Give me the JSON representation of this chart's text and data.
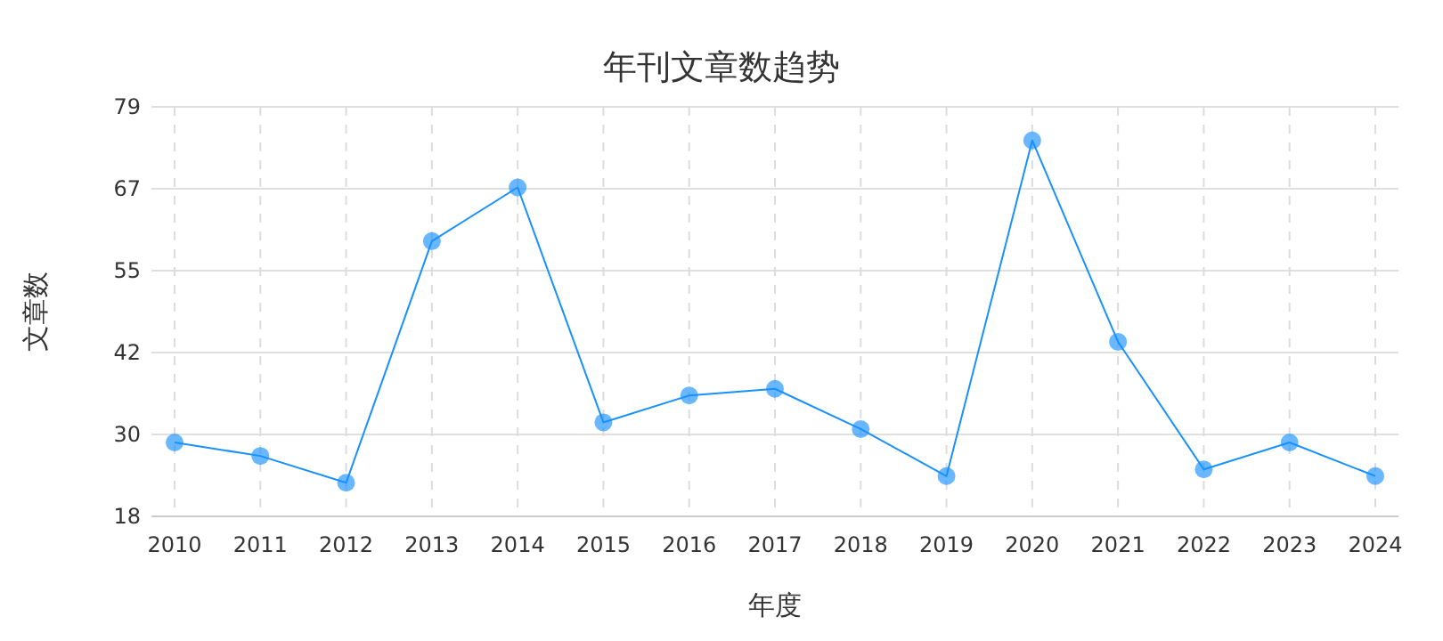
{
  "chart_data": {
    "type": "line",
    "title": "年刊文章数趋势",
    "xlabel": "年度",
    "ylabel": "文章数",
    "categories": [
      "2010",
      "2011",
      "2012",
      "2013",
      "2014",
      "2015",
      "2016",
      "2017",
      "2018",
      "2019",
      "2020",
      "2021",
      "2022",
      "2023",
      "2024"
    ],
    "series": [
      {
        "color": "#1890ff",
        "values": [
          29,
          27,
          23,
          59,
          67,
          32,
          36,
          37,
          31,
          24,
          74,
          44,
          25,
          29,
          24
        ]
      }
    ],
    "ylim": [
      18,
      79
    ],
    "yticks": [
      18,
      {
        "value": 30.2,
        "label": "30"
      },
      {
        "value": 42.4,
        "label": "42"
      },
      {
        "value": 54.6,
        "label": "55"
      },
      {
        "value": 66.8,
        "label": "67"
      },
      79
    ],
    "grid": true,
    "marker": "circle",
    "line_style": "solid"
  }
}
